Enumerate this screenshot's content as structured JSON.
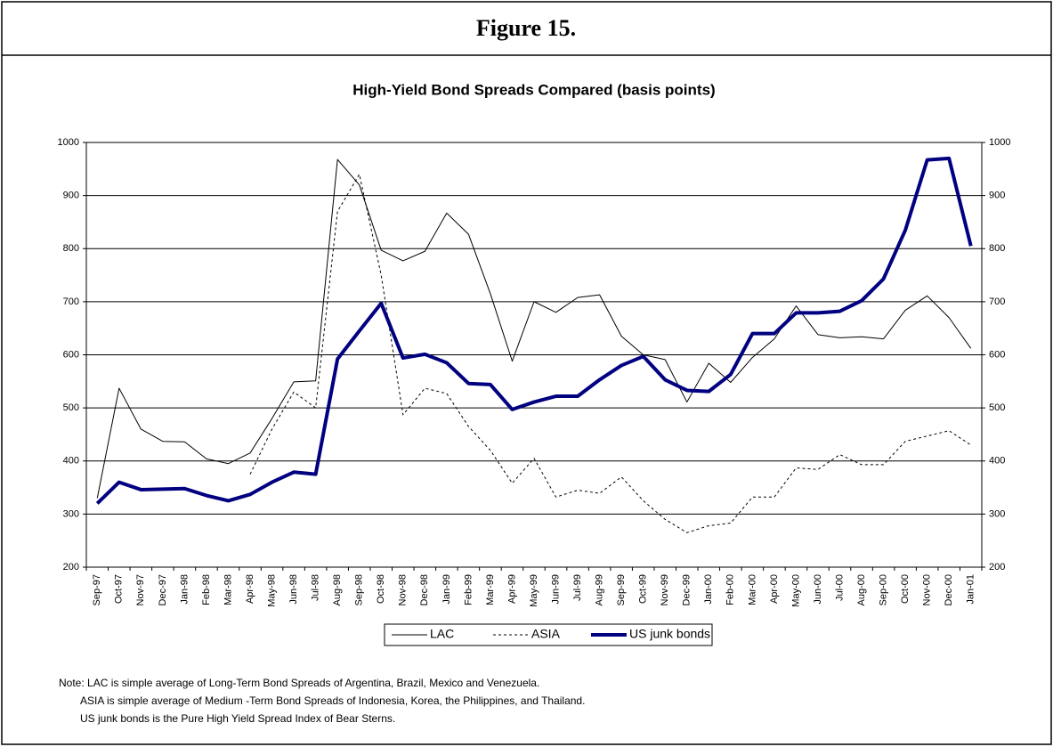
{
  "header": {
    "title": "Figure 15."
  },
  "chart_data": {
    "type": "line",
    "title": "High-Yield Bond Spreads Compared (basis points)",
    "categories": [
      "Sep-97",
      "Oct-97",
      "Nov-97",
      "Dec-97",
      "Jan-98",
      "Feb-98",
      "Mar-98",
      "Apr-98",
      "May-98",
      "Jun-98",
      "Jul-98",
      "Aug-98",
      "Sep-98",
      "Oct-98",
      "Nov-98",
      "Dec-98",
      "Jan-99",
      "Feb-99",
      "Mar-99",
      "Apr-99",
      "May-99",
      "Jun-99",
      "Jul-99",
      "Aug-99",
      "Sep-99",
      "Oct-99",
      "Nov-99",
      "Dec-99",
      "Jan-00",
      "Feb-00",
      "Mar-00",
      "Apr-00",
      "May-00",
      "Jun-00",
      "Jul-00",
      "Aug-00",
      "Sep-00",
      "Oct-00",
      "Nov-00",
      "Dec-00",
      "Jan-01"
    ],
    "series": [
      {
        "name": "LAC",
        "color": "#000000",
        "width": 1,
        "dash": "solid",
        "values": [
          330,
          537,
          460,
          437,
          436,
          404,
          395,
          415,
          480,
          549,
          551,
          968,
          920,
          797,
          777,
          795,
          867,
          827,
          715,
          588,
          700,
          680,
          708,
          713,
          635,
          600,
          591,
          511,
          584,
          548,
          595,
          630,
          692,
          638,
          632,
          634,
          630,
          684,
          711,
          670,
          612
        ]
      },
      {
        "name": "ASIA",
        "color": "#000000",
        "width": 1,
        "dash": "dashed",
        "values": [
          null,
          null,
          null,
          null,
          null,
          null,
          null,
          375,
          460,
          530,
          500,
          870,
          940,
          750,
          487,
          537,
          527,
          465,
          420,
          358,
          405,
          332,
          345,
          339,
          370,
          325,
          290,
          265,
          278,
          283,
          332,
          332,
          387,
          384,
          412,
          393,
          393,
          437,
          447,
          457,
          430
        ]
      },
      {
        "name": "US junk bonds",
        "color": "#000080",
        "width": 4,
        "dash": "solid",
        "values": [
          320,
          360,
          346,
          347,
          348,
          335,
          325,
          337,
          360,
          379,
          375,
          592,
          645,
          697,
          594,
          601,
          585,
          546,
          544,
          497,
          511,
          522,
          522,
          553,
          580,
          597,
          553,
          533,
          531,
          563,
          640,
          640,
          679,
          679,
          682,
          702,
          743,
          835,
          967,
          970,
          805
        ]
      }
    ],
    "ylim": [
      200,
      1000
    ],
    "yticks": [
      200,
      300,
      400,
      500,
      600,
      700,
      800,
      900,
      1000
    ],
    "y2lim": [
      200,
      1000
    ],
    "y2ticks": [
      200,
      300,
      400,
      500,
      600,
      700,
      800,
      900,
      1000
    ],
    "grid": true,
    "legend": "bottom",
    "notes": [
      "Note: LAC is simple average of Long-Term Bond Spreads of Argentina, Brazil, Mexico and Venezuela.",
      "ASIA is simple average of Medium -Term Bond Spreads of Indonesia, Korea, the Philippines, and Thailand.",
      "US junk bonds is the Pure High Yield Spread Index of Bear Sterns."
    ]
  }
}
